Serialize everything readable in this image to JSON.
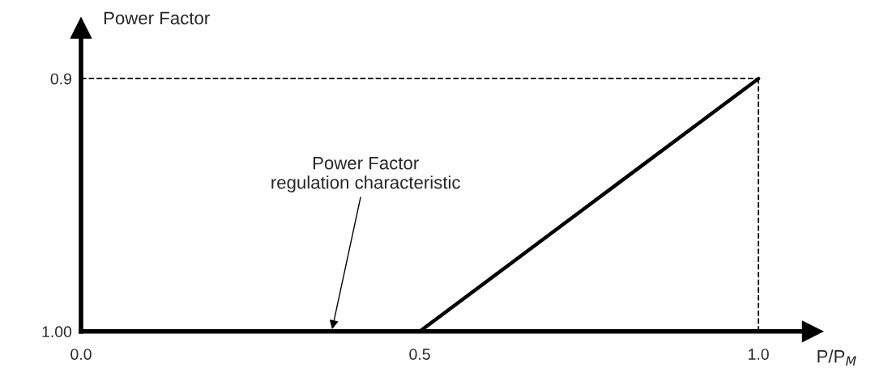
{
  "chart_data": {
    "type": "line",
    "ylabel": "Power Factor",
    "xlabel": "P/P$_{M}$",
    "x": [
      0,
      0.5,
      1.0
    ],
    "series": [
      {
        "color": "#000000",
        "values": [
          1.0,
          1.0,
          0.9
        ],
        "line_style": "solid"
      }
    ],
    "ref_lines": [
      {
        "axis": "y",
        "value": 0.9,
        "color": "#000000",
        "line_style": "dashed"
      },
      {
        "axis": "x",
        "value": 1.0,
        "color": "#000000",
        "line_style": "dashed"
      }
    ],
    "xlim": [
      0,
      1.08
    ],
    "xticks": [
      {
        "value": 0,
        "label": "0.0"
      },
      0.5,
      {
        "value": 1.0,
        "label": "1.0"
      }
    ],
    "ylim": [
      1.0,
      0.88
    ],
    "yticks": [
      {
        "value": 1.0,
        "label": "1.00"
      },
      0.9
    ],
    "annotations": [
      {
        "text": "Power Factor\nregulation characteristic",
        "x": 0.37,
        "y": 1.0
      }
    ],
    "grid": false,
    "marker": "none"
  }
}
